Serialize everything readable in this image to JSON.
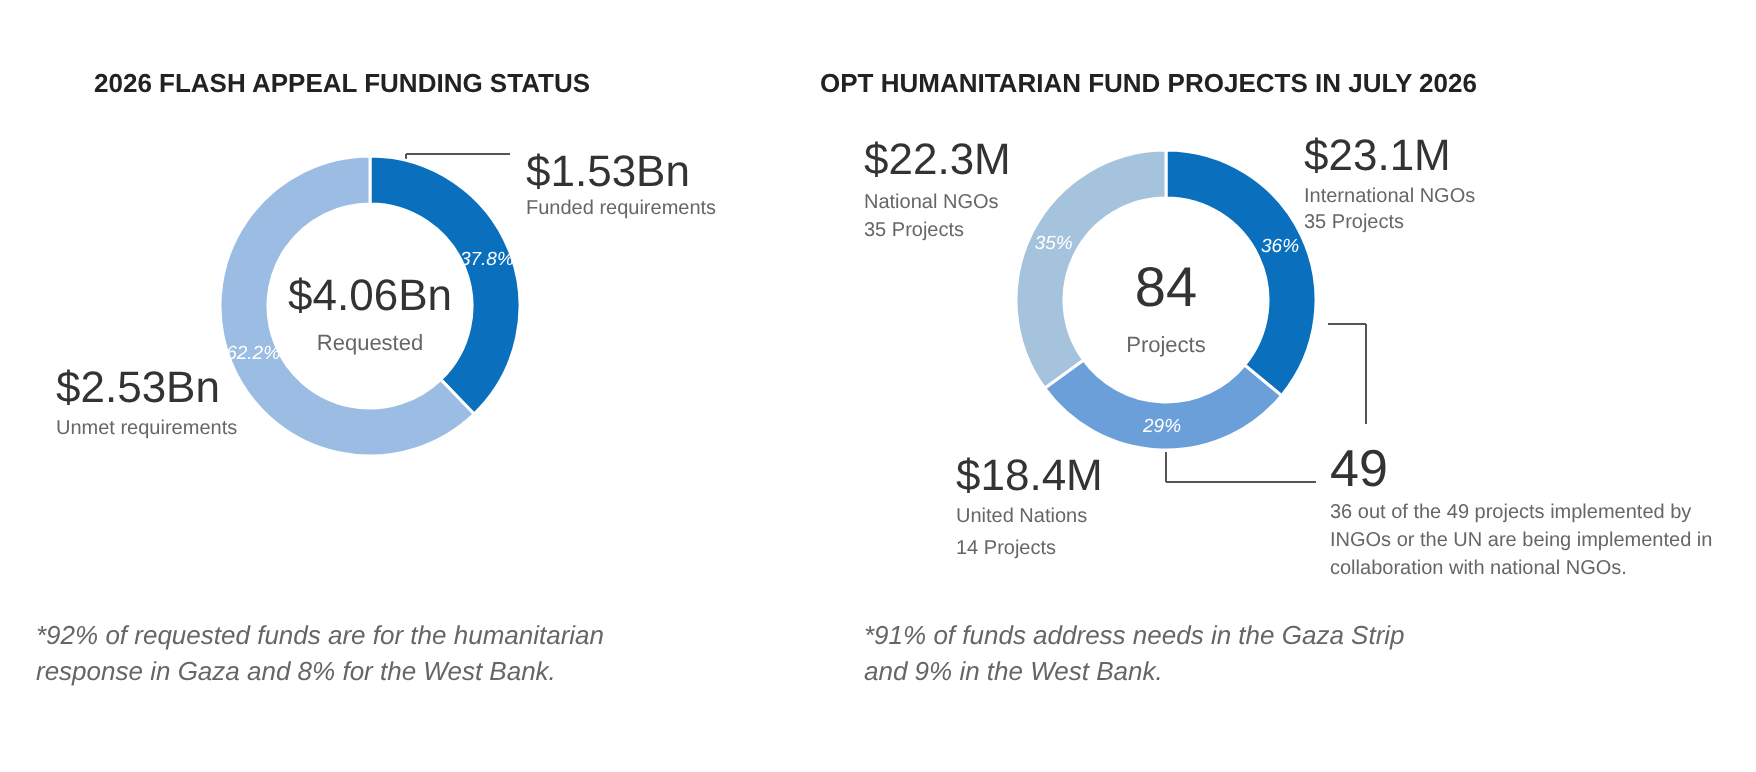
{
  "chart_data": [
    {
      "type": "donut",
      "title": "2026 FLASH APPEAL FUNDING STATUS",
      "categories": [
        "Funded requirements",
        "Unmet requirements"
      ],
      "values": [
        37.8,
        62.2
      ],
      "value_labels": [
        "37.8%",
        "62.2%"
      ],
      "colors": [
        "#0a6fbd",
        "#9cbde3"
      ],
      "annotations": [
        "$1.53Bn",
        "$4.06Bn",
        "Requested",
        "$2.53Bn",
        "*92% of requested funds are for the humanitarian response in Gaza and 8% for the West Bank."
      ]
    },
    {
      "type": "donut",
      "title": "OPT HUMANITARIAN FUND PROJECTS IN JULY 2026",
      "categories": [
        "International NGOs",
        "United Nations",
        "National NGOs"
      ],
      "values": [
        36,
        29,
        35
      ],
      "value_labels": [
        "36%",
        "29%",
        "35%"
      ],
      "colors": [
        "#0a6fbd",
        "#6b9fd9",
        "#a5c3dd"
      ],
      "annotations": [
        "$23.1M",
        "35 Projects",
        "$18.4M",
        "14 Projects",
        "$22.3M",
        "35 Projects",
        "84",
        "Projects",
        "49",
        "36 out of the 49 projects implemented by INGOs or the UN are being implemented in collaboration with national NGOs.",
        "*91% of funds address needs in the Gaza Strip and 9% in the West Bank."
      ]
    }
  ]
}
